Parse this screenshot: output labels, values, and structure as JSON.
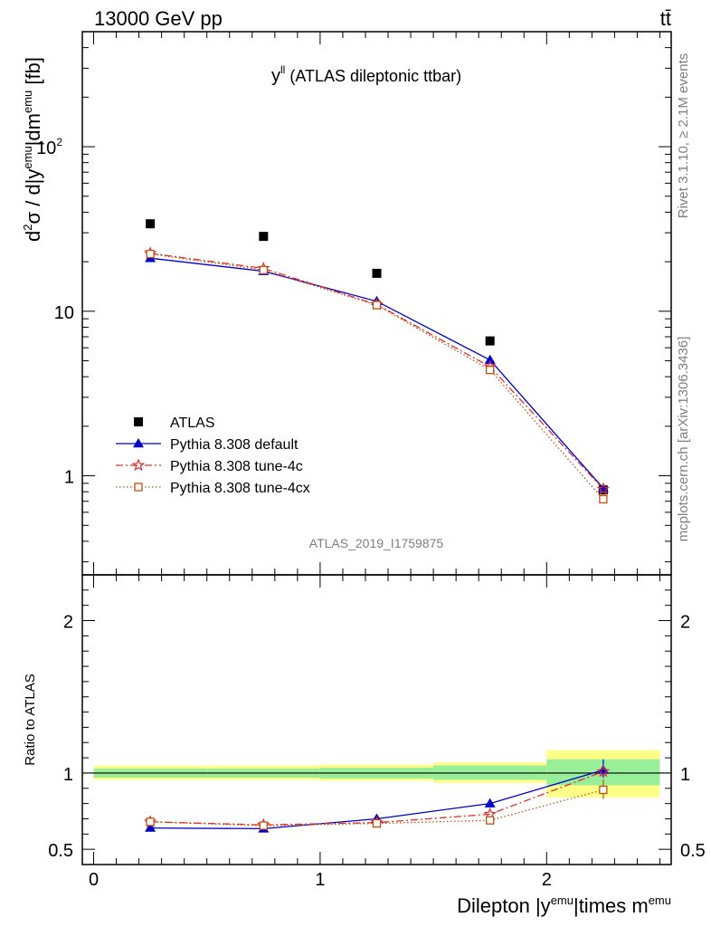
{
  "header": {
    "energy_label": "13000 GeV pp",
    "process_label": "tt̄"
  },
  "side_labels": {
    "rivet": "Rivet 3.1.10, ≥ 2.1M events",
    "mcplots": "mcplots.cern.ch [arXiv:1306.3436]"
  },
  "chart_data": [
    {
      "type": "scatter",
      "title": "yˡˡ (ATLAS dileptonic ttbar)",
      "title_main": "y",
      "title_sup": "ll",
      "title_rest": " (ATLAS dileptonic ttbar)",
      "watermark": "ATLAS_2019_I1759875",
      "ylabel": "d²σ / d|yᵉᵐᵘ|dmᵉᵐᵘ [fb]",
      "y_scale": "log",
      "ylim": [
        0.25,
        500
      ],
      "xlim": [
        -0.05,
        2.55
      ],
      "y_tick_labels": [
        {
          "value": 1,
          "label": "1"
        },
        {
          "value": 10,
          "label": "10"
        },
        {
          "value": 100,
          "label": "10",
          "sup": "2"
        }
      ],
      "legend_position": "bottom-left",
      "series": [
        {
          "name": "ATLAS",
          "color": "#000000",
          "marker": "square",
          "line": "none",
          "x": [
            0.25,
            0.75,
            1.25,
            1.75,
            2.25
          ],
          "y": [
            34.0,
            28.5,
            17.0,
            6.6,
            0.82
          ]
        },
        {
          "name": "Pythia 8.308 default",
          "color": "#0000cc",
          "marker": "triangle",
          "line": "solid",
          "x": [
            0.25,
            0.75,
            1.25,
            1.75,
            2.25
          ],
          "y": [
            21.0,
            17.5,
            11.5,
            5.05,
            0.84
          ]
        },
        {
          "name": "Pythia 8.308 tune-4c",
          "color": "#e03030",
          "marker": "star",
          "line": "dashdot",
          "x": [
            0.25,
            0.75,
            1.25,
            1.75,
            2.25
          ],
          "y": [
            22.5,
            18.2,
            11.0,
            4.6,
            0.83
          ]
        },
        {
          "name": "Pythia 8.308 tune-4cx",
          "color": "#c05010",
          "marker": "open-square",
          "line": "dotted",
          "x": [
            0.25,
            0.75,
            1.25,
            1.75,
            2.25
          ],
          "y": [
            22.3,
            17.8,
            10.9,
            4.4,
            0.72
          ]
        }
      ]
    },
    {
      "type": "scatter",
      "ylabel": "Ratio to ATLAS",
      "xlabel": "Dilepton |yᵉᵐᵘ|times mᵉᵐᵘ",
      "xlabel_parts": [
        "Dilepton |y",
        "emu",
        "|times m",
        "emu"
      ],
      "ylim": [
        0.4,
        2.3
      ],
      "xlim": [
        -0.05,
        2.55
      ],
      "x_ticks": [
        {
          "value": 0,
          "label": "0"
        },
        {
          "value": 1,
          "label": "1"
        },
        {
          "value": 2,
          "label": "2"
        }
      ],
      "y_ticks": [
        {
          "value": 0.5,
          "label": "0.5"
        },
        {
          "value": 1,
          "label": "1"
        },
        {
          "value": 2,
          "label": "2"
        }
      ],
      "uncertainty_bands": {
        "bins": [
          [
            0,
            0.5
          ],
          [
            0.5,
            1.0
          ],
          [
            1.0,
            1.5
          ],
          [
            1.5,
            2.0
          ],
          [
            2.0,
            2.5
          ]
        ],
        "stat_low": [
          0.97,
          0.97,
          0.965,
          0.955,
          0.92
        ],
        "stat_high": [
          1.03,
          1.03,
          1.035,
          1.05,
          1.09
        ],
        "total_low": [
          0.955,
          0.955,
          0.95,
          0.935,
          0.84
        ],
        "total_high": [
          1.05,
          1.05,
          1.055,
          1.07,
          1.15
        ],
        "stat_color": "#99ee99",
        "total_color": "#ffff88"
      },
      "series": [
        {
          "name": "Pythia 8.308 default",
          "color": "#0000cc",
          "marker": "triangle",
          "line": "solid",
          "x": [
            0.25,
            0.75,
            1.25,
            1.75,
            2.25
          ],
          "y": [
            0.64,
            0.635,
            0.7,
            0.8,
            1.02
          ],
          "y_err_last": [
            0.97,
            1.09
          ]
        },
        {
          "name": "Pythia 8.308 tune-4c",
          "color": "#e03030",
          "marker": "star",
          "line": "dashdot",
          "x": [
            0.25,
            0.75,
            1.25,
            1.75,
            2.25
          ],
          "y": [
            0.68,
            0.66,
            0.675,
            0.73,
            1.01
          ]
        },
        {
          "name": "Pythia 8.308 tune-4cx",
          "color": "#c05010",
          "marker": "open-square",
          "line": "dotted",
          "x": [
            0.25,
            0.75,
            1.25,
            1.75,
            2.25
          ],
          "y": [
            0.68,
            0.655,
            0.67,
            0.69,
            0.89
          ],
          "y_err_last": [
            0.83,
            0.96
          ]
        }
      ]
    }
  ]
}
